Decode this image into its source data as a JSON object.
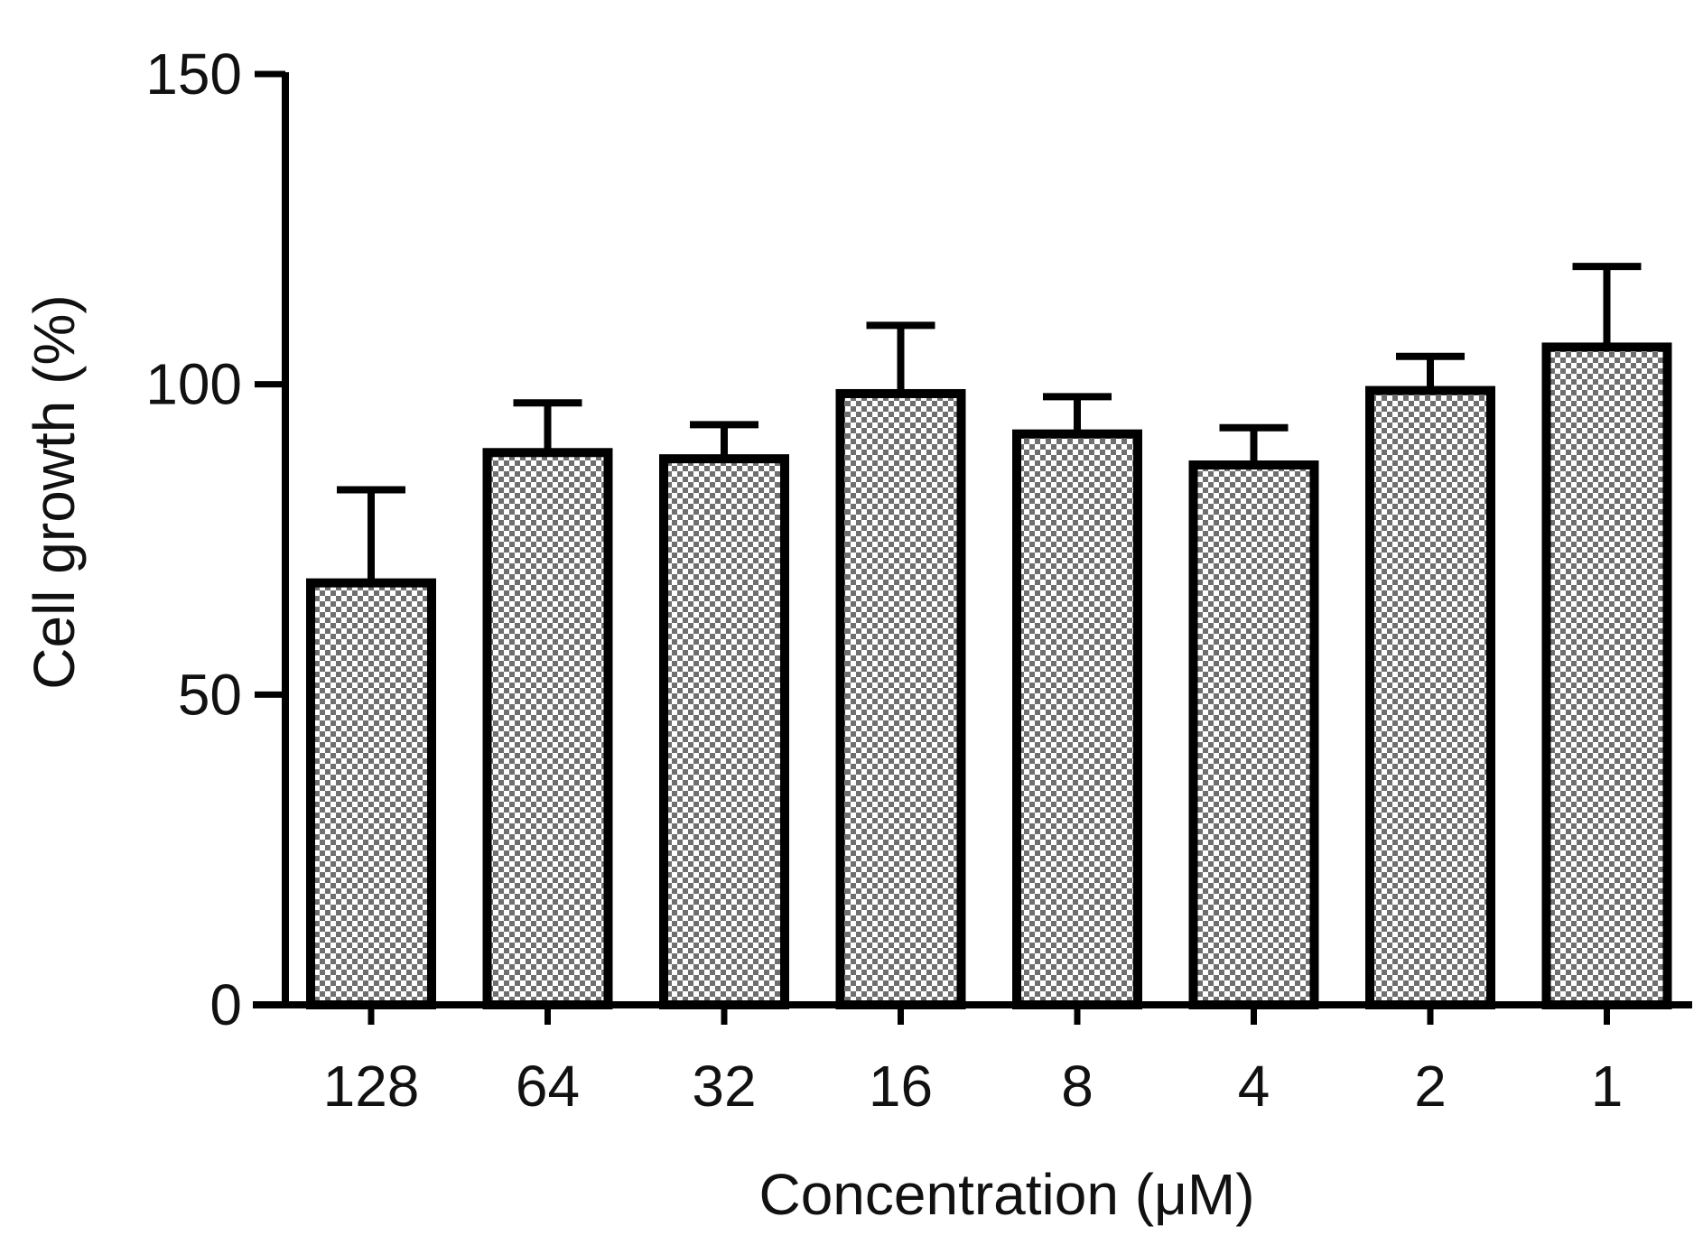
{
  "chart_data": {
    "type": "bar",
    "title": "",
    "xlabel": "Concentration (μM)",
    "ylabel": "Cell growth (%)",
    "categories": [
      "128",
      "64",
      "32",
      "16",
      "8",
      "4",
      "2",
      "1"
    ],
    "values": [
      68,
      89,
      88,
      98.5,
      92,
      87,
      99,
      106
    ],
    "errors": [
      15,
      8,
      5.5,
      11,
      6,
      6,
      5.5,
      13
    ],
    "ylim": [
      0,
      150
    ],
    "yticks": [
      0,
      50,
      100,
      150
    ],
    "grid": false,
    "legend": "none",
    "colors": {
      "bar_fill": "#888888",
      "bar_stroke": "#000000",
      "axis": "#000000",
      "text": "#111111"
    }
  }
}
